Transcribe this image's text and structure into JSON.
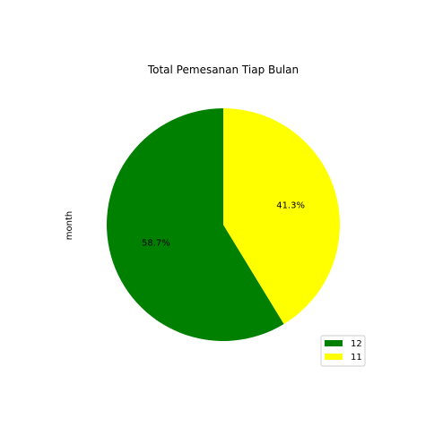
{
  "chart_data": {
    "type": "pie",
    "title": "Total Pemesanan Tiap Bulan",
    "ylabel": "month",
    "slices": [
      {
        "label": "12",
        "value": 58.7,
        "pct_label": "58.7%",
        "color": "#008000"
      },
      {
        "label": "11",
        "value": 41.3,
        "pct_label": "41.3%",
        "color": "#ffff00"
      }
    ],
    "start_angle_deg": 90,
    "direction": "counterclockwise",
    "legend_placement": "lower-right"
  }
}
